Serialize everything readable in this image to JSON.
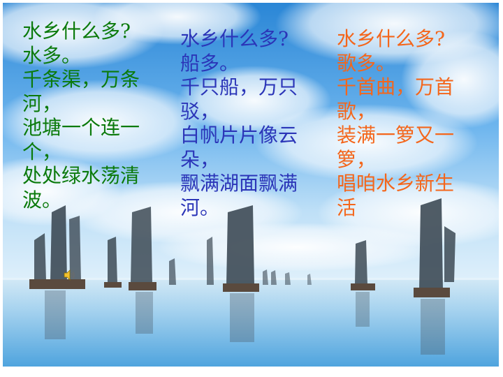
{
  "slide": {
    "background": "sky-clouds-and-sailboats-on-lake"
  },
  "poems": [
    {
      "color": "#0b7a0b",
      "lines": [
        "水乡什么多?",
        "水多。",
        "千条渠，万条",
        "河，",
        "池塘一个连一",
        "个，",
        "处处绿水荡清",
        "波。"
      ]
    },
    {
      "color": "#2b35b8",
      "lines": [
        "水乡什么多?",
        "船多。",
        "千只船，万只",
        "驳，",
        "白帆片片像云",
        "朵，",
        "飘满湖面飘满",
        "河。"
      ]
    },
    {
      "color": "#f4661b",
      "lines": [
        "水乡什么多?",
        "歌多。",
        "千首曲，万首",
        "歌，",
        "装满一箩又一",
        "箩，",
        "唱咱水乡新生",
        "活"
      ]
    }
  ],
  "icons": {
    "audio": "speaker-icon"
  }
}
